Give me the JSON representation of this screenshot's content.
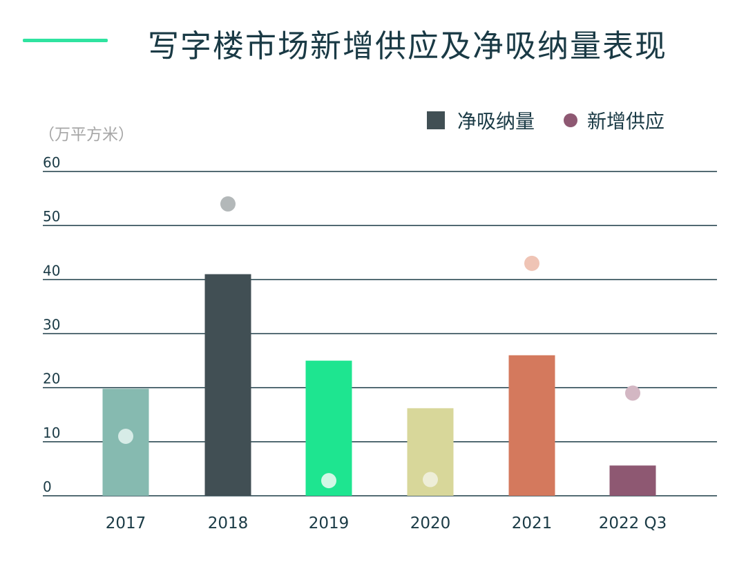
{
  "title": "写字楼市场新增供应及净吸纳量表现",
  "colors": {
    "accent": "#2fe3a0",
    "grid": "#1a3a45",
    "text": "#1a3a45",
    "legend_net_absorption": "#414f54",
    "legend_new_supply": "#8e5872"
  },
  "chart_data": {
    "type": "bar",
    "title": "写字楼市场新增供应及净吸纳量表现",
    "ylabel": "（万平方米）",
    "xlabel": "",
    "ylim": [
      0,
      60
    ],
    "yticks": [
      0,
      10,
      20,
      30,
      40,
      50,
      60
    ],
    "grid": true,
    "legend_position": "top-right",
    "categories": [
      "2017",
      "2018",
      "2019",
      "2020",
      "2021",
      "2022 Q3"
    ],
    "series": [
      {
        "name": "净吸纳量",
        "type": "bar",
        "values": [
          19.8,
          41,
          25,
          16.2,
          26,
          5.6
        ],
        "colors": [
          "#86bab0",
          "#414f54",
          "#1ee590",
          "#d8d79a",
          "#d4795d",
          "#8e5872"
        ]
      },
      {
        "name": "新增供应",
        "type": "scatter",
        "values": [
          11,
          54,
          2.8,
          3,
          43,
          19
        ],
        "colors": [
          "#d7ece7",
          "#b3b8b9",
          "#d2f8e6",
          "#eeeed8",
          "#efc4b5",
          "#d3b7c3"
        ]
      }
    ]
  }
}
